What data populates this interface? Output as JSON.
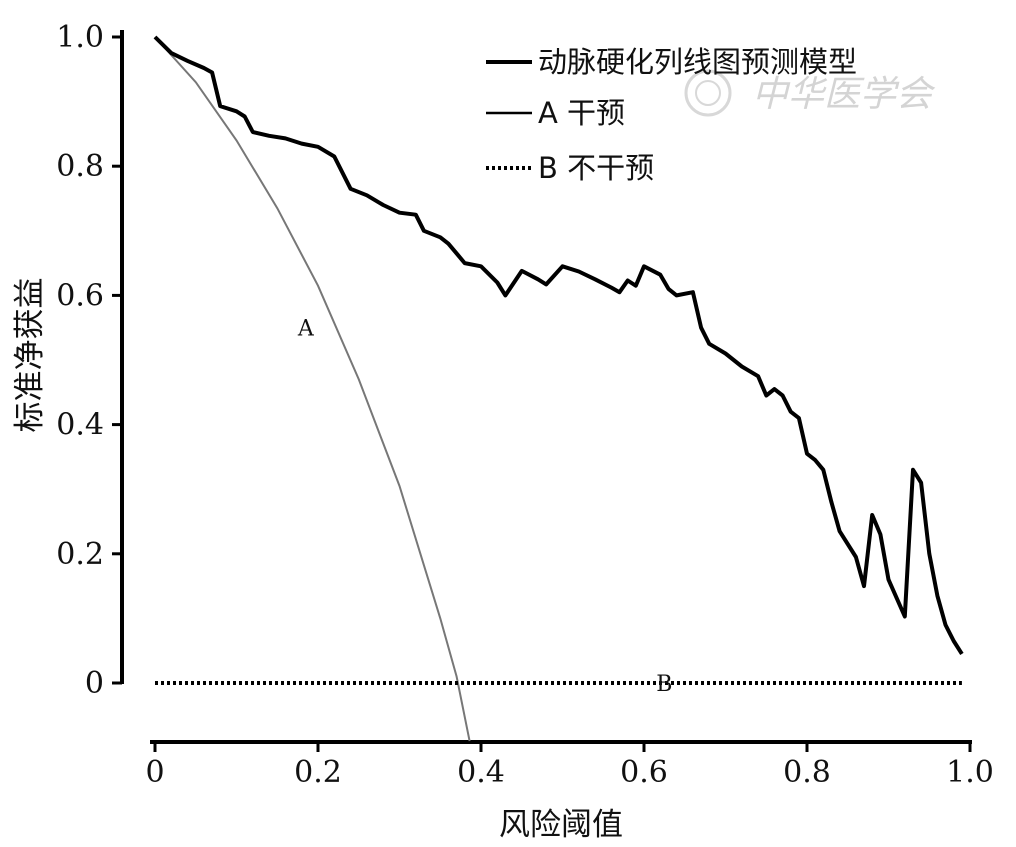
{
  "chart_data": {
    "type": "line",
    "xlabel": "风险阈值",
    "ylabel": "标准净获益",
    "xlim": [
      0,
      1.0
    ],
    "ylim": [
      -0.09,
      1.0
    ],
    "x_ticks": [
      "0",
      "0.2",
      "0.4",
      "0.6",
      "0.8",
      "1.0"
    ],
    "y_ticks": [
      "0",
      "0.2",
      "0.4",
      "0.6",
      "0.8",
      "1.0"
    ],
    "grid": false,
    "legend_position": "top-right",
    "colors": {
      "model": "#000000",
      "treat_all": "#777777",
      "treat_none": "#000000"
    },
    "series": [
      {
        "name": "动脉硬化列线图预测模型",
        "style": "thick-solid",
        "points": [
          [
            0.0,
            1.0
          ],
          [
            0.02,
            0.975
          ],
          [
            0.04,
            0.963
          ],
          [
            0.06,
            0.952
          ],
          [
            0.07,
            0.945
          ],
          [
            0.08,
            0.893
          ],
          [
            0.1,
            0.885
          ],
          [
            0.11,
            0.877
          ],
          [
            0.12,
            0.853
          ],
          [
            0.14,
            0.847
          ],
          [
            0.16,
            0.843
          ],
          [
            0.18,
            0.835
          ],
          [
            0.2,
            0.83
          ],
          [
            0.22,
            0.815
          ],
          [
            0.24,
            0.765
          ],
          [
            0.26,
            0.755
          ],
          [
            0.28,
            0.74
          ],
          [
            0.3,
            0.728
          ],
          [
            0.32,
            0.725
          ],
          [
            0.33,
            0.7
          ],
          [
            0.35,
            0.69
          ],
          [
            0.36,
            0.68
          ],
          [
            0.37,
            0.665
          ],
          [
            0.38,
            0.65
          ],
          [
            0.4,
            0.645
          ],
          [
            0.42,
            0.62
          ],
          [
            0.43,
            0.6
          ],
          [
            0.45,
            0.638
          ],
          [
            0.47,
            0.625
          ],
          [
            0.48,
            0.617
          ],
          [
            0.5,
            0.645
          ],
          [
            0.52,
            0.637
          ],
          [
            0.54,
            0.625
          ],
          [
            0.56,
            0.612
          ],
          [
            0.57,
            0.605
          ],
          [
            0.58,
            0.623
          ],
          [
            0.59,
            0.615
          ],
          [
            0.6,
            0.645
          ],
          [
            0.62,
            0.632
          ],
          [
            0.63,
            0.61
          ],
          [
            0.64,
            0.6
          ],
          [
            0.66,
            0.605
          ],
          [
            0.67,
            0.55
          ],
          [
            0.68,
            0.525
          ],
          [
            0.7,
            0.51
          ],
          [
            0.72,
            0.49
          ],
          [
            0.74,
            0.475
          ],
          [
            0.75,
            0.445
          ],
          [
            0.76,
            0.455
          ],
          [
            0.77,
            0.445
          ],
          [
            0.78,
            0.42
          ],
          [
            0.79,
            0.41
          ],
          [
            0.8,
            0.355
          ],
          [
            0.81,
            0.345
          ],
          [
            0.82,
            0.33
          ],
          [
            0.83,
            0.28
          ],
          [
            0.84,
            0.235
          ],
          [
            0.86,
            0.195
          ],
          [
            0.87,
            0.15
          ],
          [
            0.88,
            0.26
          ],
          [
            0.89,
            0.23
          ],
          [
            0.9,
            0.16
          ],
          [
            0.92,
            0.103
          ],
          [
            0.93,
            0.33
          ],
          [
            0.94,
            0.31
          ],
          [
            0.95,
            0.2
          ],
          [
            0.96,
            0.135
          ],
          [
            0.97,
            0.09
          ],
          [
            0.98,
            0.065
          ],
          [
            0.99,
            0.045
          ]
        ]
      },
      {
        "name": "A 干预",
        "style": "thin-solid",
        "points": [
          [
            0.0,
            1.0
          ],
          [
            0.05,
            0.93
          ],
          [
            0.1,
            0.84
          ],
          [
            0.15,
            0.735
          ],
          [
            0.2,
            0.615
          ],
          [
            0.25,
            0.47
          ],
          [
            0.3,
            0.305
          ],
          [
            0.35,
            0.1
          ],
          [
            0.37,
            0.01
          ],
          [
            0.386,
            -0.09
          ]
        ]
      },
      {
        "name": "B 不干预",
        "style": "dotted",
        "points": [
          [
            0.0,
            0.0
          ],
          [
            0.99,
            0.0
          ]
        ]
      }
    ],
    "annotations": [
      {
        "text": "A",
        "x": 0.185,
        "y": 0.55
      },
      {
        "text": "B",
        "x": 0.625,
        "y": 0.0
      }
    ]
  },
  "watermark": {
    "text": "中华医学会",
    "icon": "society-seal-icon"
  }
}
